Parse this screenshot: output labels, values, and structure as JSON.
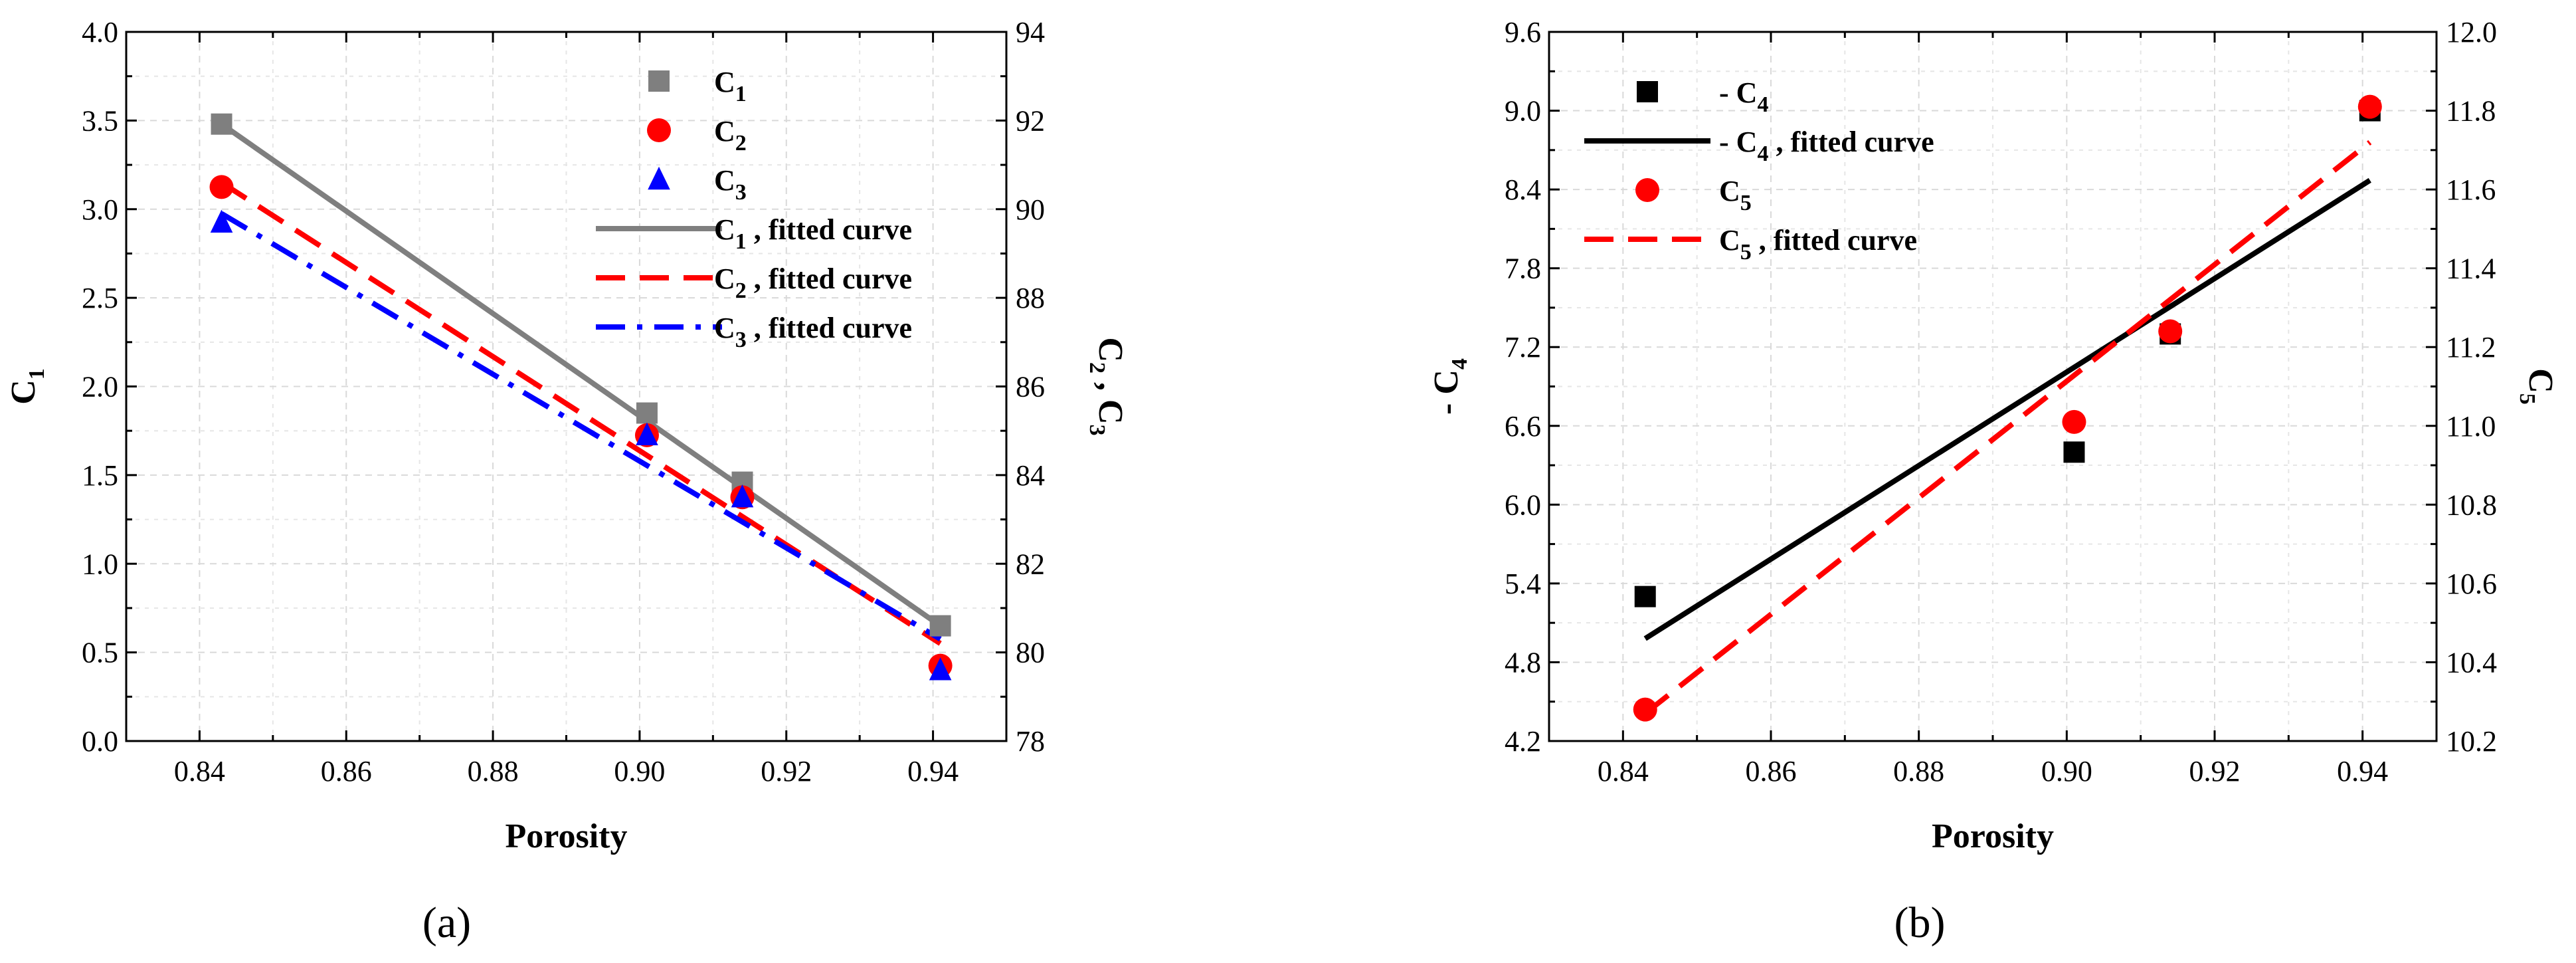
{
  "chart_data": [
    {
      "type": "scatter",
      "panel_label": "(a)",
      "panel_letter": "a",
      "xlabel": "Porosity",
      "ylabel": {
        "base": "C",
        "sub": "1"
      },
      "y2label": {
        "a": "C",
        "a_sub": "2",
        "sep": " , ",
        "b": "C",
        "b_sub": "3"
      },
      "xlim": [
        0.83,
        0.95
      ],
      "xticks": [
        "0.84",
        "0.86",
        "0.88",
        "0.90",
        "0.92",
        "0.94"
      ],
      "ylim": [
        0.0,
        4.0
      ],
      "yticks": [
        "0.0",
        "0.5",
        "1.0",
        "1.5",
        "2.0",
        "2.5",
        "3.0",
        "3.5",
        "4.0"
      ],
      "y2lim": [
        78,
        94
      ],
      "y2ticks": [
        "78",
        "80",
        "82",
        "84",
        "86",
        "88",
        "90",
        "92",
        "94"
      ],
      "grid": true,
      "legend_position": "top-right",
      "series": [
        {
          "name": "C1",
          "label": {
            "base": "C",
            "sub": "1",
            "suffix": ""
          },
          "kind": "points",
          "axis": "left",
          "marker": "square",
          "color": "#7f7f7f",
          "x": [
            0.843,
            0.901,
            0.914,
            0.941
          ],
          "y": [
            3.48,
            1.85,
            1.46,
            0.65
          ]
        },
        {
          "name": "C2",
          "label": {
            "base": "C",
            "sub": "2",
            "suffix": ""
          },
          "kind": "points",
          "axis": "right",
          "marker": "circle",
          "color": "#ff0000",
          "x": [
            0.843,
            0.901,
            0.914,
            0.941
          ],
          "y": [
            90.5,
            84.9,
            83.5,
            79.7
          ]
        },
        {
          "name": "C3",
          "label": {
            "base": "C",
            "sub": "3",
            "suffix": ""
          },
          "kind": "points",
          "axis": "right",
          "marker": "triangle",
          "color": "#0000ff",
          "x": [
            0.843,
            0.901,
            0.914,
            0.941
          ],
          "y": [
            89.7,
            84.9,
            83.5,
            79.6
          ]
        },
        {
          "name": "C1 fitted curve",
          "label": {
            "base": "C",
            "sub": "1",
            "suffix": " , fitted curve"
          },
          "kind": "line",
          "axis": "left",
          "line": "solid",
          "color": "#7f7f7f",
          "x": [
            0.843,
            0.941
          ],
          "y": [
            3.48,
            0.65
          ]
        },
        {
          "name": "C2 fitted curve",
          "label": {
            "base": "C",
            "sub": "2",
            "suffix": " , fitted curve"
          },
          "kind": "line",
          "axis": "right",
          "line": "dash",
          "color": "#ff0000",
          "x": [
            0.843,
            0.941
          ],
          "y": [
            90.6,
            80.2
          ]
        },
        {
          "name": "C3 fitted curve",
          "label": {
            "base": "C",
            "sub": "3",
            "suffix": " , fitted curve"
          },
          "kind": "line",
          "axis": "right",
          "line": "dashdot",
          "color": "#0000ff",
          "x": [
            0.843,
            0.941
          ],
          "y": [
            89.9,
            80.3
          ]
        }
      ]
    },
    {
      "type": "scatter",
      "panel_label": "(b)",
      "panel_letter": "b",
      "xlabel": "Porosity",
      "ylabel": {
        "base": "- C",
        "sub": "4"
      },
      "y2label": {
        "base": "C",
        "sub": "5"
      },
      "xlim": [
        0.83,
        0.95
      ],
      "xticks": [
        "0.84",
        "0.86",
        "0.88",
        "0.90",
        "0.92",
        "0.94"
      ],
      "ylim": [
        4.2,
        9.6
      ],
      "yticks": [
        "4.2",
        "4.8",
        "5.4",
        "6.0",
        "6.6",
        "7.2",
        "7.8",
        "8.4",
        "9.0",
        "9.6"
      ],
      "y2lim": [
        10.2,
        12.0
      ],
      "y2ticks": [
        "10.2",
        "10.4",
        "10.6",
        "10.8",
        "11.0",
        "11.2",
        "11.4",
        "11.6",
        "11.8",
        "12.0"
      ],
      "grid": true,
      "legend_position": "top-left",
      "series": [
        {
          "name": "-C4",
          "label": {
            "base": "- C",
            "sub": "4",
            "suffix": ""
          },
          "kind": "points",
          "axis": "left",
          "marker": "square",
          "color": "#000000",
          "x": [
            0.843,
            0.901,
            0.914,
            0.941
          ],
          "y": [
            5.3,
            6.4,
            7.3,
            9.0
          ]
        },
        {
          "name": "-C4 fitted curve",
          "label": {
            "base": "- C",
            "sub": "4",
            "suffix": " , fitted curve"
          },
          "kind": "line",
          "axis": "left",
          "line": "solid",
          "color": "#000000",
          "x": [
            0.843,
            0.941
          ],
          "y": [
            4.98,
            8.47
          ]
        },
        {
          "name": "C5",
          "label": {
            "base": "C",
            "sub": "5",
            "suffix": ""
          },
          "kind": "points",
          "axis": "right",
          "marker": "circle",
          "color": "#ff0000",
          "x": [
            0.843,
            0.901,
            0.914,
            0.941
          ],
          "y": [
            10.28,
            11.01,
            11.24,
            11.81
          ]
        },
        {
          "name": "C5 fitted curve",
          "label": {
            "base": "C",
            "sub": "5",
            "suffix": " , fitted curve"
          },
          "kind": "line",
          "axis": "right",
          "line": "dash",
          "color": "#ff0000",
          "x": [
            0.843,
            0.941
          ],
          "y": [
            10.27,
            11.72
          ]
        }
      ]
    }
  ]
}
